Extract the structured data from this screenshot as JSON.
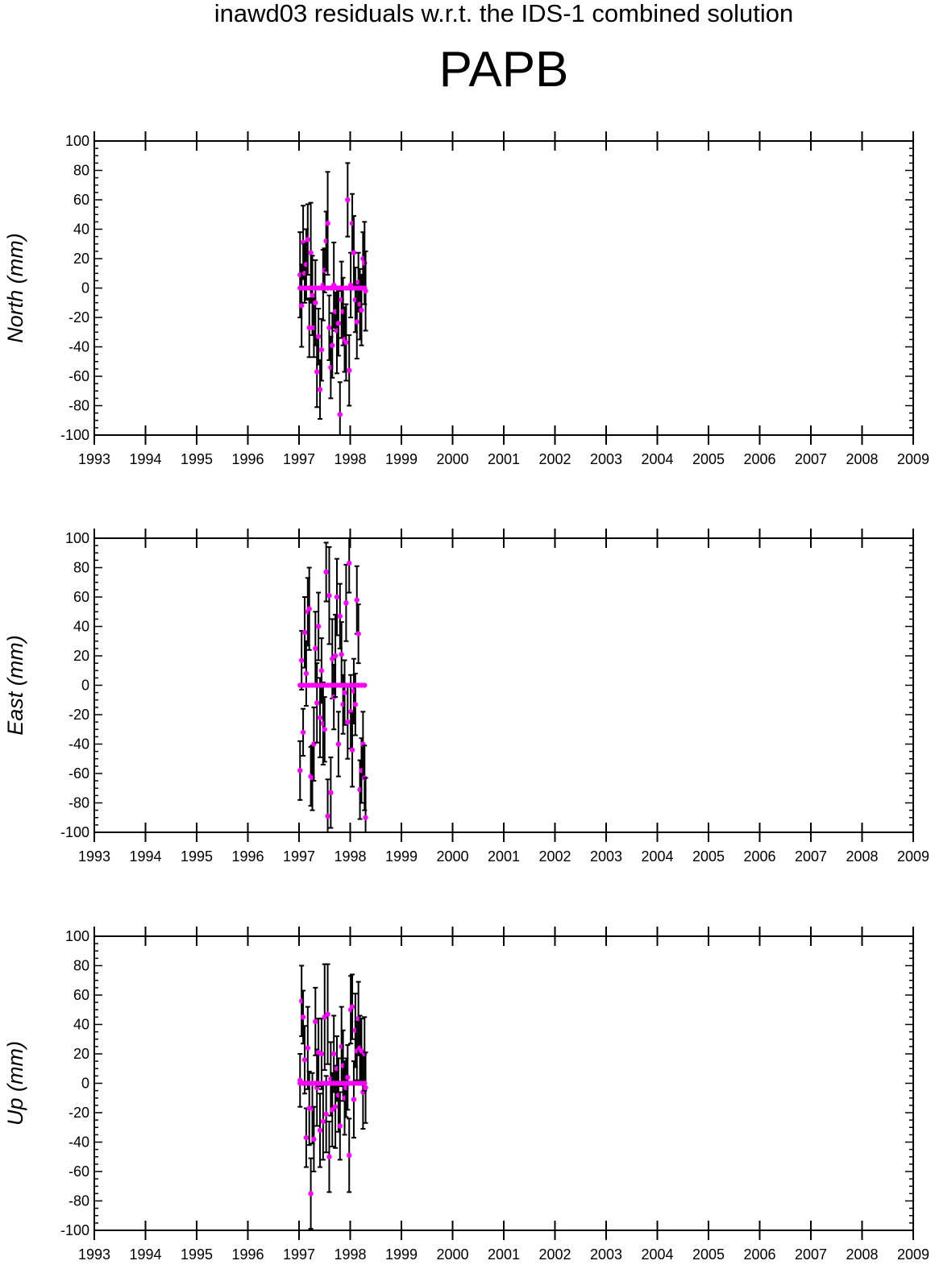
{
  "title": "inawd03 residuals w.r.t. the IDS-1 combined solution",
  "station": "PAPB",
  "colors": {
    "point": "#ff00ff",
    "errorbar": "#000000",
    "axis": "#000000"
  },
  "chart_data": [
    {
      "type": "scatter",
      "component": "north",
      "ylabel": "North (mm)",
      "xlim": [
        1993,
        2009
      ],
      "ylim": [
        -100,
        100
      ],
      "xticks": [
        1993,
        1994,
        1995,
        1996,
        1997,
        1998,
        1999,
        2000,
        2001,
        2002,
        2003,
        2004,
        2005,
        2006,
        2007,
        2008,
        2009
      ],
      "yticks": [
        -100,
        -80,
        -60,
        -40,
        -20,
        0,
        20,
        40,
        60,
        80,
        100
      ],
      "grid": false,
      "series": [
        {
          "x": [
            1997.02,
            1997.05,
            1997.08,
            1997.11,
            1997.14,
            1997.17,
            1997.2,
            1997.23,
            1997.26,
            1997.29,
            1997.32,
            1997.35,
            1997.38,
            1997.41,
            1997.44,
            1997.47,
            1997.5,
            1997.53,
            1997.56,
            1997.59,
            1997.62,
            1997.65,
            1997.68,
            1997.71,
            1997.74,
            1997.77,
            1997.8,
            1997.83,
            1997.86,
            1997.89,
            1997.92,
            1997.95,
            1997.98,
            1998.01,
            1998.04,
            1998.07,
            1998.1,
            1998.13,
            1998.16,
            1998.19,
            1998.22,
            1998.25,
            1998.28,
            1998.3
          ],
          "y": [
            9,
            -12,
            31,
            10,
            16,
            33,
            -27,
            24,
            -5,
            -27,
            -10,
            -57,
            -33,
            -69,
            -42,
            2,
            12,
            32,
            44,
            -27,
            -54,
            -39,
            2,
            -16,
            -29,
            -24,
            -86,
            -8,
            -16,
            -35,
            -37,
            60,
            -56,
            2,
            44,
            24,
            -8,
            -23,
            4,
            -11,
            -15,
            20,
            17,
            -2
          ],
          "err": [
            29,
            28,
            25,
            20,
            24,
            24,
            20,
            34,
            27,
            20,
            29,
            24,
            19,
            20,
            21,
            24,
            15,
            20,
            35,
            22,
            21,
            22,
            29,
            13,
            29,
            22,
            22,
            26,
            23,
            22,
            26,
            25,
            24,
            22,
            20,
            25,
            22,
            25,
            20,
            24,
            24,
            18,
            28,
            27
          ]
        },
        {
          "x": [
            1997.02,
            1997.08,
            1997.14,
            1997.2,
            1997.26,
            1997.32,
            1997.38,
            1997.44,
            1997.5,
            1997.56,
            1997.62,
            1997.68,
            1997.74,
            1997.8,
            1997.86,
            1997.92,
            1997.98,
            1998.04,
            1998.1,
            1998.16,
            1998.22,
            1998.28
          ],
          "y": [
            0,
            0,
            0,
            0,
            0,
            0,
            0,
            0,
            0,
            0,
            0,
            0,
            0,
            0,
            0,
            0,
            0,
            0,
            0,
            0,
            0,
            0
          ],
          "err": [
            0,
            0,
            0,
            0,
            0,
            0,
            0,
            0,
            0,
            0,
            0,
            0,
            0,
            0,
            0,
            0,
            0,
            0,
            0,
            0,
            0,
            0
          ]
        }
      ]
    },
    {
      "type": "scatter",
      "component": "east",
      "ylabel": "East (mm)",
      "xlim": [
        1993,
        2009
      ],
      "ylim": [
        -100,
        100
      ],
      "xticks": [
        1993,
        1994,
        1995,
        1996,
        1997,
        1998,
        1999,
        2000,
        2001,
        2002,
        2003,
        2004,
        2005,
        2006,
        2007,
        2008,
        2009
      ],
      "yticks": [
        -100,
        -80,
        -60,
        -40,
        -20,
        0,
        20,
        40,
        60,
        80,
        100
      ],
      "grid": false,
      "series": [
        {
          "x": [
            1997.02,
            1997.05,
            1997.08,
            1997.11,
            1997.14,
            1997.17,
            1997.2,
            1997.23,
            1997.26,
            1997.29,
            1997.32,
            1997.35,
            1997.38,
            1997.41,
            1997.44,
            1997.47,
            1997.5,
            1997.53,
            1997.56,
            1997.59,
            1997.62,
            1997.65,
            1997.68,
            1997.71,
            1997.74,
            1997.77,
            1997.8,
            1997.83,
            1997.86,
            1997.89,
            1997.92,
            1997.95,
            1997.98,
            1998.01,
            1998.04,
            1998.07,
            1998.1,
            1998.13,
            1998.16,
            1998.19,
            1998.22,
            1998.25,
            1998.28,
            1998.3
          ],
          "y": [
            -58,
            17,
            -32,
            36,
            8,
            50,
            52,
            -62,
            -63,
            -40,
            25,
            -12,
            40,
            -22,
            10,
            -26,
            -30,
            77,
            -89,
            61,
            -73,
            18,
            -8,
            20,
            60,
            -40,
            47,
            21,
            -13,
            -5,
            56,
            -25,
            83,
            -18,
            -44,
            -4,
            -13,
            58,
            35,
            -71,
            -58,
            -40,
            -63,
            -90
          ],
          "err": [
            20,
            20,
            16,
            24,
            22,
            23,
            28,
            20,
            22,
            25,
            25,
            27,
            23,
            27,
            22,
            28,
            22,
            20,
            25,
            33,
            24,
            27,
            22,
            28,
            26,
            22,
            22,
            22,
            20,
            22,
            26,
            25,
            20,
            25,
            25,
            22,
            21,
            23,
            20,
            20,
            22,
            22,
            22,
            27
          ]
        },
        {
          "x": [
            1997.02,
            1997.08,
            1997.14,
            1997.2,
            1997.26,
            1997.32,
            1997.38,
            1997.44,
            1997.5,
            1997.56,
            1997.62,
            1997.68,
            1997.74,
            1997.8,
            1997.86,
            1997.92,
            1997.98,
            1998.04,
            1998.1,
            1998.16,
            1998.22,
            1998.28
          ],
          "y": [
            0,
            0,
            0,
            0,
            0,
            0,
            0,
            0,
            0,
            0,
            0,
            0,
            0,
            0,
            0,
            0,
            0,
            0,
            0,
            0,
            0,
            0
          ],
          "err": [
            0,
            0,
            0,
            0,
            0,
            0,
            0,
            0,
            0,
            0,
            0,
            0,
            0,
            0,
            0,
            0,
            0,
            0,
            0,
            0,
            0,
            0
          ]
        }
      ]
    },
    {
      "type": "scatter",
      "component": "up",
      "ylabel": "Up (mm)",
      "xlim": [
        1993,
        2009
      ],
      "ylim": [
        -100,
        100
      ],
      "xticks": [
        1993,
        1994,
        1995,
        1996,
        1997,
        1998,
        1999,
        2000,
        2001,
        2002,
        2003,
        2004,
        2005,
        2006,
        2007,
        2008,
        2009
      ],
      "yticks": [
        -100,
        -80,
        -60,
        -40,
        -20,
        0,
        20,
        40,
        60,
        80,
        100
      ],
      "grid": false,
      "series": [
        {
          "x": [
            1997.02,
            1997.05,
            1997.08,
            1997.11,
            1997.14,
            1997.17,
            1997.2,
            1997.23,
            1997.26,
            1997.29,
            1997.32,
            1997.35,
            1997.38,
            1997.41,
            1997.44,
            1997.47,
            1997.5,
            1997.53,
            1997.56,
            1997.59,
            1997.62,
            1997.65,
            1997.68,
            1997.71,
            1997.74,
            1997.77,
            1997.8,
            1997.83,
            1997.86,
            1997.89,
            1997.92,
            1997.95,
            1997.98,
            1998.01,
            1998.04,
            1998.07,
            1998.1,
            1998.13,
            1998.16,
            1998.19,
            1998.22,
            1998.25,
            1998.28,
            1998.3
          ],
          "y": [
            2,
            56,
            45,
            16,
            -37,
            24,
            -17,
            -75,
            -17,
            -38,
            42,
            -3,
            21,
            -32,
            20,
            -26,
            45,
            -21,
            47,
            -50,
            3,
            -18,
            20,
            -16,
            10,
            -8,
            -29,
            25,
            12,
            -10,
            -3,
            4,
            -49,
            50,
            52,
            -11,
            36,
            22,
            44,
            24,
            22,
            -6,
            20,
            -3
          ],
          "err": [
            18,
            24,
            18,
            23,
            20,
            28,
            25,
            24,
            24,
            22,
            23,
            26,
            23,
            25,
            24,
            26,
            36,
            26,
            34,
            24,
            25,
            25,
            26,
            28,
            22,
            25,
            23,
            27,
            24,
            25,
            20,
            22,
            25,
            23,
            22,
            26,
            25,
            20,
            25,
            22,
            22,
            25,
            25,
            24
          ]
        },
        {
          "x": [
            1997.02,
            1997.08,
            1997.14,
            1997.2,
            1997.26,
            1997.32,
            1997.38,
            1997.44,
            1997.5,
            1997.56,
            1997.62,
            1997.68,
            1997.74,
            1997.8,
            1997.86,
            1997.92,
            1997.98,
            1998.04,
            1998.1,
            1998.16,
            1998.22,
            1998.28
          ],
          "y": [
            0,
            0,
            0,
            0,
            0,
            0,
            0,
            0,
            0,
            0,
            0,
            0,
            0,
            0,
            0,
            0,
            0,
            0,
            0,
            0,
            0,
            0
          ],
          "err": [
            0,
            0,
            0,
            0,
            0,
            0,
            0,
            0,
            0,
            0,
            0,
            0,
            0,
            0,
            0,
            0,
            0,
            0,
            0,
            0,
            0,
            0
          ]
        }
      ]
    }
  ]
}
